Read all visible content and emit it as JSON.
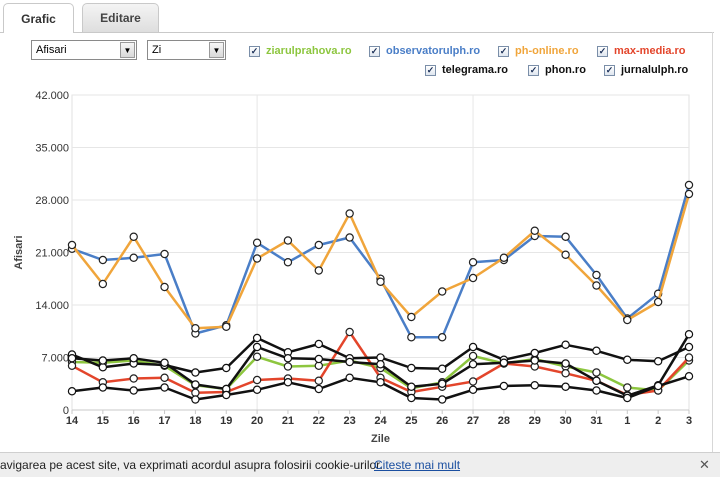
{
  "tabs": [
    {
      "label": "Grafic",
      "active": true
    },
    {
      "label": "Editare",
      "active": false
    }
  ],
  "controls": {
    "metric_select": "Afisari",
    "period_select": "Zi"
  },
  "legend": [
    {
      "name": "ziarulprahova.ro",
      "color": "#8dc63f",
      "checked": true
    },
    {
      "name": "observatorulph.ro",
      "color": "#4a7ec7",
      "checked": true
    },
    {
      "name": "ph-online.ro",
      "color": "#f0a53b",
      "checked": true
    },
    {
      "name": "max-media.ro",
      "color": "#e3452b",
      "checked": true
    },
    {
      "name": "telegrama.ro",
      "color": "#111111",
      "checked": true
    },
    {
      "name": "phon.ro",
      "color": "#111111",
      "checked": true
    },
    {
      "name": "jurnalulph.ro",
      "color": "#111111",
      "checked": true
    }
  ],
  "cookie_bar": {
    "message": "avigarea pe acest site, va exprimati acordul asupra folosirii cookie-urilor.",
    "link": "Citeste mai mult",
    "close": "✕"
  },
  "chart_data": {
    "type": "line",
    "xlabel": "Zile",
    "ylabel": "Afisari",
    "categories": [
      "14",
      "15",
      "16",
      "17",
      "18",
      "19",
      "20",
      "21",
      "22",
      "23",
      "24",
      "25",
      "26",
      "27",
      "28",
      "29",
      "30",
      "31",
      "1",
      "2",
      "3"
    ],
    "ylim": [
      0,
      42000
    ],
    "yticks": [
      "0",
      "7.000",
      "14.000",
      "21.000",
      "28.000",
      "35.000",
      "42.000"
    ],
    "grid": true,
    "series": [
      {
        "name": "observatorulph.ro",
        "color": "#4a7ec7",
        "values": [
          21500,
          20000,
          20300,
          20800,
          10200,
          11300,
          22300,
          19700,
          22000,
          23000,
          17500,
          9700,
          9700,
          19700,
          20000,
          23200,
          23100,
          18000,
          12200,
          15500,
          30000
        ]
      },
      {
        "name": "ph-online.ro",
        "color": "#f0a53b",
        "values": [
          22000,
          16800,
          23100,
          16400,
          10900,
          11100,
          20200,
          22600,
          18600,
          26200,
          17100,
          12400,
          15800,
          17600,
          20300,
          23900,
          20700,
          16600,
          12000,
          14400,
          28800
        ]
      },
      {
        "name": "ziarulprahova.ro",
        "color": "#8dc63f",
        "values": [
          6400,
          6300,
          6600,
          5900,
          3300,
          2800,
          7100,
          5800,
          5900,
          6600,
          5600,
          2900,
          3700,
          7200,
          6200,
          6800,
          5800,
          5000,
          3000,
          2600,
          6600
        ]
      },
      {
        "name": "max-media.ro",
        "color": "#e3452b",
        "values": [
          5900,
          3700,
          4200,
          4300,
          2300,
          2400,
          4000,
          4200,
          3900,
          10400,
          4300,
          2400,
          3100,
          3800,
          6200,
          5800,
          4900,
          3900,
          2000,
          2600,
          7000
        ]
      },
      {
        "name": "telegrama.ro",
        "color": "#111111",
        "values": [
          7400,
          5700,
          6200,
          6000,
          5000,
          5600,
          9600,
          7700,
          8800,
          6900,
          7000,
          5600,
          5500,
          8400,
          6700,
          7600,
          8700,
          7900,
          6700,
          6500,
          8400
        ]
      },
      {
        "name": "phon.ro",
        "color": "#111111",
        "values": [
          6900,
          6600,
          6900,
          6300,
          3400,
          2800,
          8400,
          6900,
          6800,
          6400,
          6100,
          3100,
          3500,
          6100,
          6300,
          6600,
          6200,
          3900,
          1900,
          3300,
          10100
        ]
      },
      {
        "name": "jurnalulph.ro",
        "color": "#111111",
        "values": [
          2500,
          3000,
          2600,
          3000,
          1400,
          2000,
          2700,
          3700,
          2800,
          4300,
          3700,
          1600,
          1400,
          2700,
          3200,
          3300,
          3100,
          2600,
          1600,
          3200,
          4500
        ]
      }
    ]
  }
}
